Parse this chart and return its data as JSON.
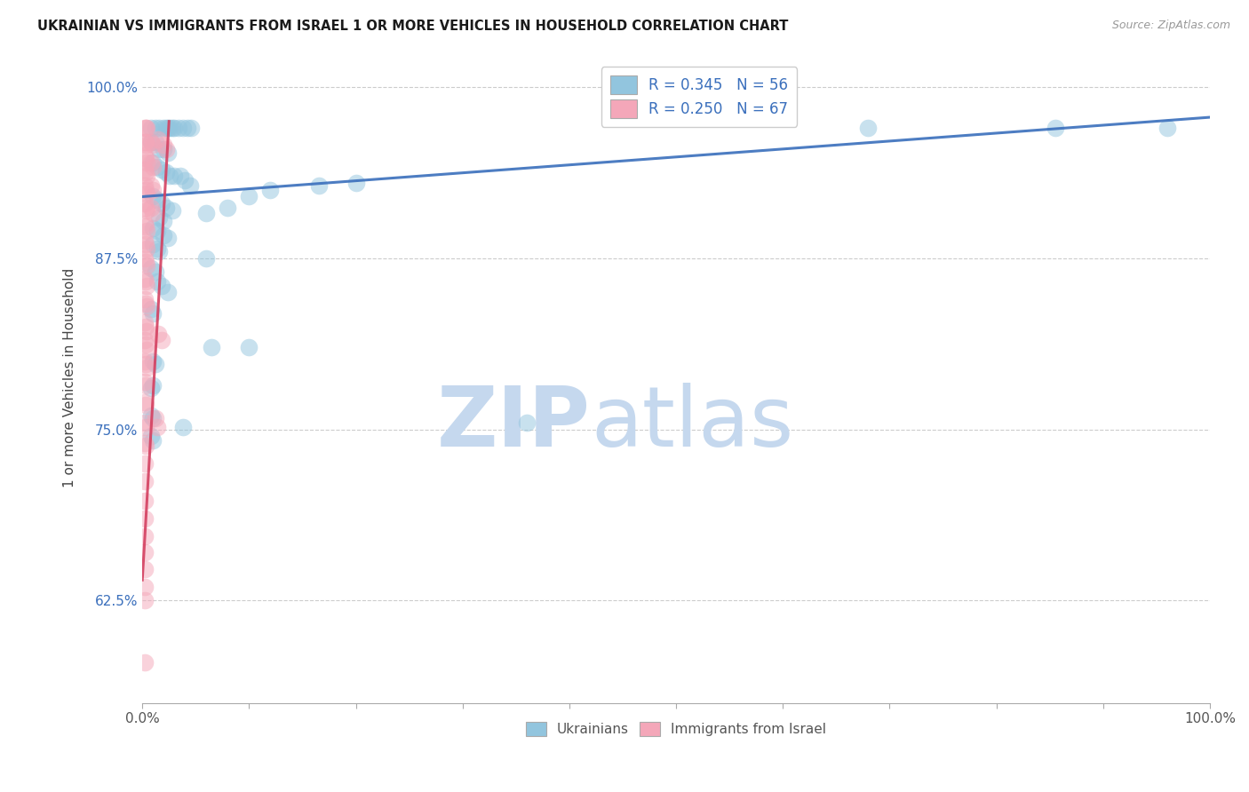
{
  "title": "UKRAINIAN VS IMMIGRANTS FROM ISRAEL 1 OR MORE VEHICLES IN HOUSEHOLD CORRELATION CHART",
  "source": "Source: ZipAtlas.com",
  "ylabel": "1 or more Vehicles in Household",
  "xmin": 0.0,
  "xmax": 1.0,
  "ymin": 0.55,
  "ymax": 1.025,
  "yticks": [
    0.625,
    0.75,
    0.875,
    1.0
  ],
  "ytick_labels": [
    "62.5%",
    "75.0%",
    "87.5%",
    "100.0%"
  ],
  "watermark_zip": "ZIP",
  "watermark_atlas": "atlas",
  "blue_color": "#92c5de",
  "pink_color": "#f4a7b9",
  "blue_line_color": "#3a6fbc",
  "pink_line_color": "#d44060",
  "blue_scatter": [
    [
      0.008,
      0.97
    ],
    [
      0.012,
      0.97
    ],
    [
      0.016,
      0.97
    ],
    [
      0.02,
      0.97
    ],
    [
      0.024,
      0.97
    ],
    [
      0.028,
      0.97
    ],
    [
      0.03,
      0.97
    ],
    [
      0.034,
      0.97
    ],
    [
      0.038,
      0.97
    ],
    [
      0.042,
      0.97
    ],
    [
      0.046,
      0.97
    ],
    [
      0.022,
      0.97
    ],
    [
      0.026,
      0.97
    ],
    [
      0.008,
      0.96
    ],
    [
      0.012,
      0.96
    ],
    [
      0.016,
      0.955
    ],
    [
      0.02,
      0.955
    ],
    [
      0.024,
      0.952
    ],
    [
      0.01,
      0.945
    ],
    [
      0.014,
      0.942
    ],
    [
      0.018,
      0.94
    ],
    [
      0.022,
      0.938
    ],
    [
      0.026,
      0.935
    ],
    [
      0.03,
      0.935
    ],
    [
      0.036,
      0.935
    ],
    [
      0.04,
      0.932
    ],
    [
      0.045,
      0.928
    ],
    [
      0.01,
      0.92
    ],
    [
      0.014,
      0.918
    ],
    [
      0.018,
      0.915
    ],
    [
      0.022,
      0.912
    ],
    [
      0.028,
      0.91
    ],
    [
      0.016,
      0.905
    ],
    [
      0.02,
      0.902
    ],
    [
      0.01,
      0.897
    ],
    [
      0.014,
      0.895
    ],
    [
      0.02,
      0.892
    ],
    [
      0.024,
      0.89
    ],
    [
      0.01,
      0.885
    ],
    [
      0.014,
      0.882
    ],
    [
      0.016,
      0.88
    ],
    [
      0.06,
      0.908
    ],
    [
      0.08,
      0.912
    ],
    [
      0.1,
      0.92
    ],
    [
      0.12,
      0.925
    ],
    [
      0.165,
      0.928
    ],
    [
      0.2,
      0.93
    ],
    [
      0.008,
      0.868
    ],
    [
      0.012,
      0.865
    ],
    [
      0.014,
      0.858
    ],
    [
      0.018,
      0.855
    ],
    [
      0.024,
      0.85
    ],
    [
      0.008,
      0.838
    ],
    [
      0.01,
      0.835
    ],
    [
      0.06,
      0.875
    ],
    [
      0.01,
      0.8
    ],
    [
      0.012,
      0.798
    ],
    [
      0.01,
      0.782
    ],
    [
      0.008,
      0.78
    ],
    [
      0.065,
      0.81
    ],
    [
      0.1,
      0.81
    ],
    [
      0.008,
      0.76
    ],
    [
      0.01,
      0.758
    ],
    [
      0.038,
      0.752
    ],
    [
      0.008,
      0.745
    ],
    [
      0.01,
      0.742
    ],
    [
      0.36,
      0.755
    ],
    [
      0.68,
      0.97
    ],
    [
      0.855,
      0.97
    ],
    [
      0.96,
      0.97
    ]
  ],
  "pink_scatter": [
    [
      0.002,
      0.97
    ],
    [
      0.003,
      0.97
    ],
    [
      0.004,
      0.97
    ],
    [
      0.002,
      0.96
    ],
    [
      0.003,
      0.96
    ],
    [
      0.004,
      0.958
    ],
    [
      0.002,
      0.95
    ],
    [
      0.003,
      0.948
    ],
    [
      0.004,
      0.945
    ],
    [
      0.002,
      0.94
    ],
    [
      0.003,
      0.938
    ],
    [
      0.004,
      0.935
    ],
    [
      0.002,
      0.928
    ],
    [
      0.003,
      0.925
    ],
    [
      0.004,
      0.922
    ],
    [
      0.002,
      0.915
    ],
    [
      0.003,
      0.912
    ],
    [
      0.004,
      0.91
    ],
    [
      0.002,
      0.9
    ],
    [
      0.003,
      0.898
    ],
    [
      0.004,
      0.895
    ],
    [
      0.002,
      0.888
    ],
    [
      0.003,
      0.885
    ],
    [
      0.004,
      0.882
    ],
    [
      0.002,
      0.875
    ],
    [
      0.003,
      0.872
    ],
    [
      0.004,
      0.87
    ],
    [
      0.002,
      0.86
    ],
    [
      0.003,
      0.858
    ],
    [
      0.004,
      0.855
    ],
    [
      0.002,
      0.845
    ],
    [
      0.003,
      0.842
    ],
    [
      0.004,
      0.84
    ],
    [
      0.002,
      0.828
    ],
    [
      0.003,
      0.825
    ],
    [
      0.004,
      0.822
    ],
    [
      0.002,
      0.815
    ],
    [
      0.003,
      0.812
    ],
    [
      0.004,
      0.808
    ],
    [
      0.002,
      0.8
    ],
    [
      0.003,
      0.798
    ],
    [
      0.004,
      0.795
    ],
    [
      0.002,
      0.785
    ],
    [
      0.003,
      0.782
    ],
    [
      0.002,
      0.77
    ],
    [
      0.003,
      0.768
    ],
    [
      0.002,
      0.755
    ],
    [
      0.003,
      0.752
    ],
    [
      0.002,
      0.74
    ],
    [
      0.003,
      0.738
    ],
    [
      0.002,
      0.725
    ],
    [
      0.002,
      0.712
    ],
    [
      0.002,
      0.698
    ],
    [
      0.002,
      0.685
    ],
    [
      0.002,
      0.672
    ],
    [
      0.002,
      0.66
    ],
    [
      0.002,
      0.648
    ],
    [
      0.002,
      0.635
    ],
    [
      0.002,
      0.625
    ],
    [
      0.008,
      0.96
    ],
    [
      0.01,
      0.958
    ],
    [
      0.008,
      0.945
    ],
    [
      0.01,
      0.942
    ],
    [
      0.008,
      0.928
    ],
    [
      0.01,
      0.925
    ],
    [
      0.008,
      0.912
    ],
    [
      0.01,
      0.908
    ],
    [
      0.015,
      0.962
    ],
    [
      0.02,
      0.958
    ],
    [
      0.022,
      0.955
    ],
    [
      0.015,
      0.82
    ],
    [
      0.018,
      0.815
    ],
    [
      0.012,
      0.758
    ],
    [
      0.014,
      0.752
    ],
    [
      0.002,
      0.58
    ]
  ],
  "blue_trendline": [
    [
      0.0,
      0.92
    ],
    [
      1.0,
      0.978
    ]
  ],
  "pink_trendline": [
    [
      0.0,
      0.64
    ],
    [
      0.025,
      0.975
    ]
  ]
}
